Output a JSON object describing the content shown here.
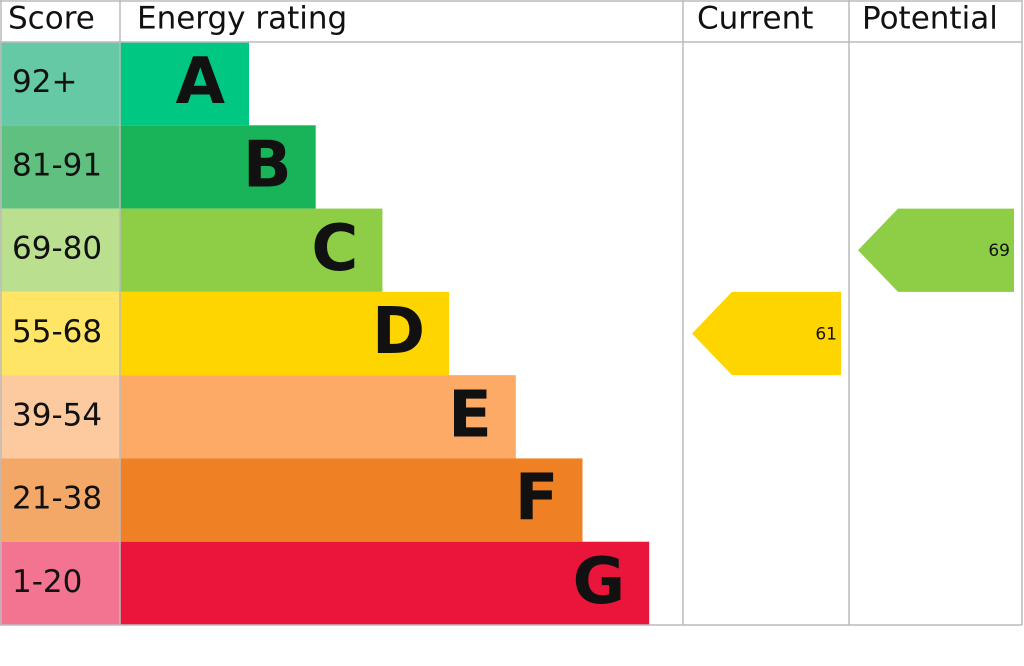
{
  "chart_data": {
    "type": "epc",
    "headers": [
      "Score",
      "Energy rating",
      "Current",
      "Potential"
    ],
    "categories": [
      "92+",
      "81-91",
      "69-80",
      "55-68",
      "39-54",
      "21-38",
      "1-20"
    ],
    "letters": [
      "A",
      "B",
      "C",
      "D",
      "E",
      "F",
      "G"
    ],
    "colors": [
      "#00c781",
      "#19b459",
      "#8dce46",
      "#ffd500",
      "#fcaa65",
      "#ef8023",
      "#e9153b"
    ],
    "score_colors": [
      "#64c9a4",
      "#5fc080",
      "#b9df8f",
      "#ffe566",
      "#fdcaa0",
      "#f4a868",
      "#f27490"
    ],
    "current": {
      "value": 61,
      "color": "#ffd500"
    },
    "potential": {
      "value": 69,
      "color": "#8dce46"
    }
  }
}
